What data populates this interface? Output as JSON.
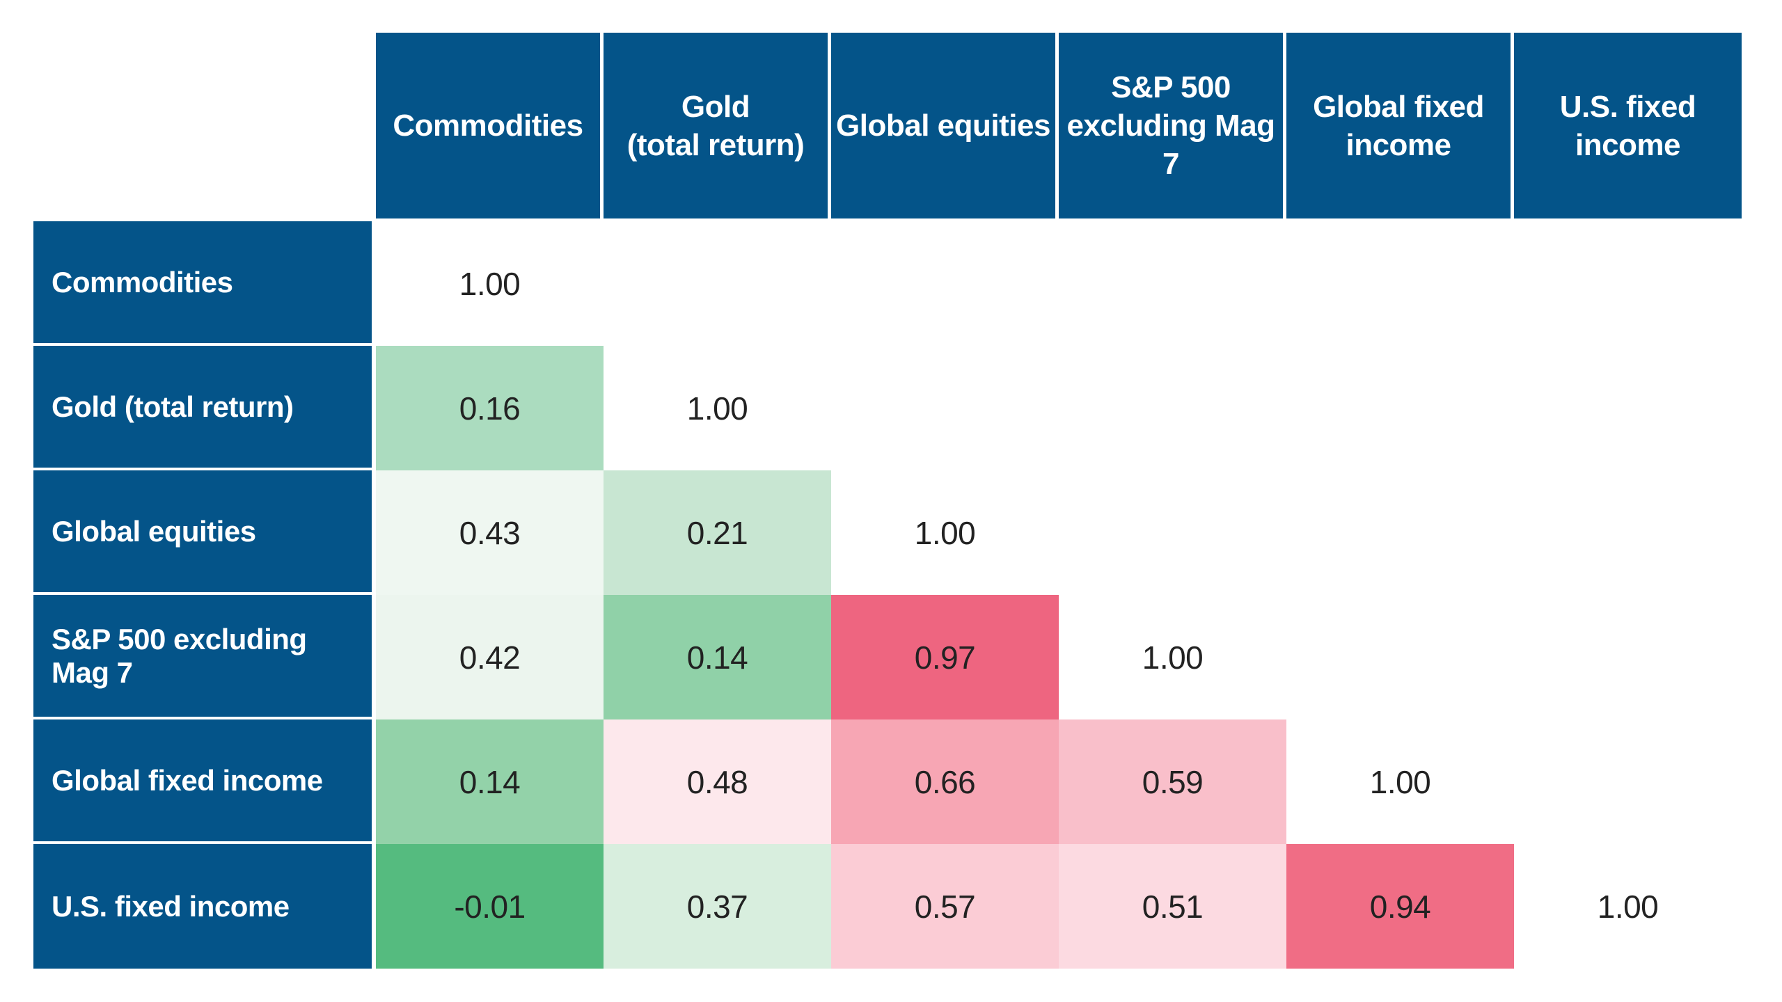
{
  "chart_data": {
    "type": "heatmap",
    "subtype": "correlation-matrix-lower-triangular",
    "categories": [
      "Commodities",
      "Gold (total return)",
      "Global equities",
      "S&P 500 excluding Mag 7",
      "Global fixed income",
      "U.S. fixed income"
    ],
    "matrix": [
      [
        1.0,
        null,
        null,
        null,
        null,
        null
      ],
      [
        0.16,
        1.0,
        null,
        null,
        null,
        null
      ],
      [
        0.43,
        0.21,
        1.0,
        null,
        null,
        null
      ],
      [
        0.42,
        0.14,
        0.97,
        1.0,
        null,
        null
      ],
      [
        0.14,
        0.48,
        0.66,
        0.59,
        1.0,
        null
      ],
      [
        -0.01,
        0.37,
        0.57,
        0.51,
        0.94,
        1.0
      ]
    ],
    "legend_position": "none",
    "grid": false,
    "color_scale": {
      "negative_low_color": "#55bb7f",
      "mid_color": "#ffffff",
      "high_color": "#ee6580",
      "diagonal_color": "#ffffff"
    }
  },
  "table": {
    "column_headers": [
      {
        "label": "Commodities"
      },
      {
        "label": "Gold\n(total return)"
      },
      {
        "label": "Global equities"
      },
      {
        "label": "S&P 500\nexcluding Mag 7"
      },
      {
        "label": "Global fixed\nincome"
      },
      {
        "label": "U.S. fixed income"
      }
    ],
    "rows": [
      {
        "label": "Commodities",
        "cells": [
          {
            "value": "1.00",
            "color": "#ffffff"
          }
        ]
      },
      {
        "label": "Gold (total return)",
        "cells": [
          {
            "value": "0.16",
            "color": "#abdcbf"
          },
          {
            "value": "1.00",
            "color": "#ffffff"
          }
        ]
      },
      {
        "label": "Global equities",
        "cells": [
          {
            "value": "0.43",
            "color": "#eff7f1"
          },
          {
            "value": "0.21",
            "color": "#c8e6d2"
          },
          {
            "value": "1.00",
            "color": "#ffffff"
          }
        ]
      },
      {
        "label": "S&P 500 excluding Mag 7",
        "cells": [
          {
            "value": "0.42",
            "color": "#ecf5ee"
          },
          {
            "value": "0.14",
            "color": "#90d1a8"
          },
          {
            "value": "0.97",
            "color": "#ee6580"
          },
          {
            "value": "1.00",
            "color": "#ffffff"
          }
        ]
      },
      {
        "label": "Global fixed income",
        "cells": [
          {
            "value": "0.14",
            "color": "#93d2a9"
          },
          {
            "value": "0.48",
            "color": "#fde8ec"
          },
          {
            "value": "0.66",
            "color": "#f7a6b4"
          },
          {
            "value": "0.59",
            "color": "#f9bfca"
          },
          {
            "value": "1.00",
            "color": "#ffffff"
          }
        ]
      },
      {
        "label": "U.S. fixed income",
        "cells": [
          {
            "value": "-0.01",
            "color": "#55bb7f"
          },
          {
            "value": "0.37",
            "color": "#d8eede"
          },
          {
            "value": "0.57",
            "color": "#fbccd5"
          },
          {
            "value": "0.51",
            "color": "#fcdae1"
          },
          {
            "value": "0.94",
            "color": "#f06d85"
          },
          {
            "value": "1.00",
            "color": "#ffffff"
          }
        ]
      }
    ]
  },
  "colors": {
    "header_background": "#045489",
    "header_text": "#ffffff",
    "value_text": "#222222",
    "page_background": "#ffffff"
  }
}
